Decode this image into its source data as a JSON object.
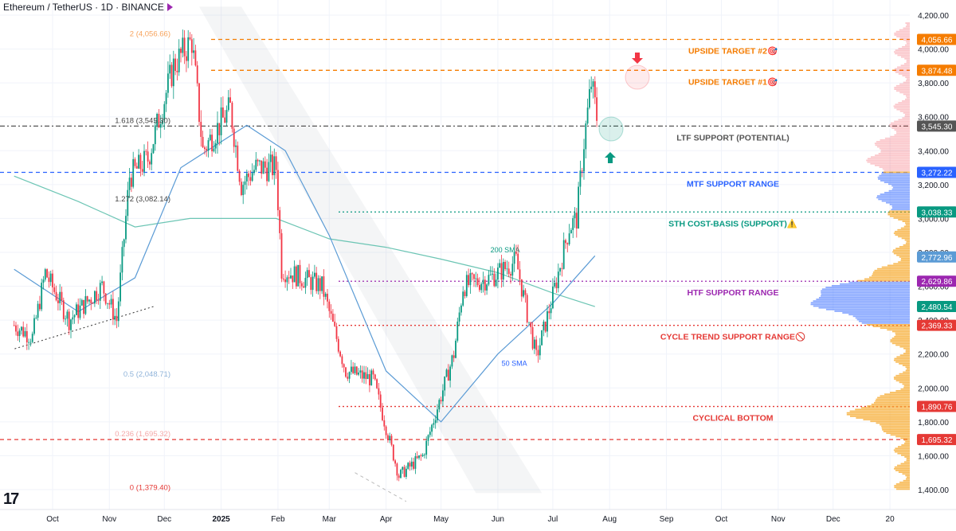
{
  "header": {
    "title": "Ethereum / TetherUS · 1D · BINANCE",
    "logo_text": "17"
  },
  "chart_data": {
    "type": "candlestick",
    "title": "Ethereum / TetherUS · 1D · BINANCE",
    "ylim": [
      1380,
      4250
    ],
    "y_ticks": [
      1400,
      1600,
      1800,
      2000,
      2200,
      2400,
      2600,
      2800,
      3000,
      3200,
      3400,
      3600,
      3800,
      4000,
      4200
    ],
    "y_tick_labels": [
      "1,400.00",
      "1,600.00",
      "1,800.00",
      "2,000.00",
      "2,200.00",
      "2,400.00",
      "2,600.00",
      "2,800.00",
      "3,000.00",
      "3,200.00",
      "3,400.00",
      "3,600.00",
      "3,800.00",
      "4,000.00",
      "4,200.00"
    ],
    "x_ticks": [
      {
        "label": "Oct",
        "date": "2024-10-01"
      },
      {
        "label": "Nov",
        "date": "2024-11-01"
      },
      {
        "label": "Dec",
        "date": "2024-12-01"
      },
      {
        "label": "2025",
        "date": "2025-01-01",
        "bold": true
      },
      {
        "label": "Feb",
        "date": "2025-02-01"
      },
      {
        "label": "Mar",
        "date": "2025-03-01"
      },
      {
        "label": "Apr",
        "date": "2025-04-01"
      },
      {
        "label": "May",
        "date": "2025-05-01"
      },
      {
        "label": "Jun",
        "date": "2025-06-01"
      },
      {
        "label": "Jul",
        "date": "2025-07-01"
      },
      {
        "label": "Aug",
        "date": "2025-08-01"
      },
      {
        "label": "Sep",
        "date": "2025-09-01"
      },
      {
        "label": "Oct",
        "date": "2025-10-01"
      },
      {
        "label": "Nov",
        "date": "2025-11-01"
      },
      {
        "label": "Dec",
        "date": "2025-12-01"
      },
      {
        "label": "20",
        "date": "2026-01-01"
      }
    ],
    "price_path": [
      [
        "2024-09-10",
        2370
      ],
      [
        "2024-09-20",
        2300
      ],
      [
        "2024-09-27",
        2680
      ],
      [
        "2024-10-10",
        2400
      ],
      [
        "2024-10-28",
        2600
      ],
      [
        "2024-11-05",
        2400
      ],
      [
        "2024-11-12",
        3250
      ],
      [
        "2024-11-22",
        3350
      ],
      [
        "2024-12-06",
        3900
      ],
      [
        "2024-12-16",
        4050
      ],
      [
        "2024-12-22",
        3400
      ],
      [
        "2025-01-06",
        3650
      ],
      [
        "2025-01-12",
        3200
      ],
      [
        "2025-01-20",
        3300
      ],
      [
        "2025-01-31",
        3300
      ],
      [
        "2025-02-03",
        2700
      ],
      [
        "2025-02-25",
        2600
      ],
      [
        "2025-03-10",
        2100
      ],
      [
        "2025-03-25",
        2050
      ],
      [
        "2025-04-08",
        1480
      ],
      [
        "2025-04-21",
        1600
      ],
      [
        "2025-05-08",
        2200
      ],
      [
        "2025-05-13",
        2600
      ],
      [
        "2025-05-28",
        2650
      ],
      [
        "2025-06-11",
        2750
      ],
      [
        "2025-06-22",
        2180
      ],
      [
        "2025-06-30",
        2500
      ],
      [
        "2025-07-10",
        2950
      ],
      [
        "2025-07-14",
        3000
      ],
      [
        "2025-07-18",
        3450
      ],
      [
        "2025-07-22",
        3800
      ],
      [
        "2025-07-25",
        3600
      ]
    ],
    "sma_50": [
      [
        "2024-09-10",
        2700
      ],
      [
        "2024-10-15",
        2450
      ],
      [
        "2024-11-15",
        2650
      ],
      [
        "2024-12-10",
        3300
      ],
      [
        "2025-01-15",
        3550
      ],
      [
        "2025-02-05",
        3400
      ],
      [
        "2025-03-01",
        2900
      ],
      [
        "2025-04-01",
        2100
      ],
      [
        "2025-05-01",
        1800
      ],
      [
        "2025-06-01",
        2200
      ],
      [
        "2025-07-01",
        2500
      ],
      [
        "2025-07-24",
        2780
      ]
    ],
    "sma_200": [
      [
        "2024-09-10",
        3250
      ],
      [
        "2024-10-15",
        3100
      ],
      [
        "2024-11-15",
        2950
      ],
      [
        "2024-12-15",
        3000
      ],
      [
        "2025-01-31",
        3000
      ],
      [
        "2025-03-01",
        2880
      ],
      [
        "2025-04-01",
        2830
      ],
      [
        "2025-05-01",
        2760
      ],
      [
        "2025-06-01",
        2680
      ],
      [
        "2025-07-01",
        2560
      ],
      [
        "2025-07-24",
        2480
      ]
    ],
    "fib_labels": [
      {
        "label": "2 (4,056.66)",
        "value": 4056.66,
        "color": "#f7a35c"
      },
      {
        "label": "1.618 (3,545.30)",
        "value": 3545.3,
        "color": "#444444"
      },
      {
        "label": "1.272 (3,082.14)",
        "value": 3082.14,
        "color": "#444444"
      },
      {
        "label": "0.5 (2,048.71)",
        "value": 2048.71,
        "color": "#8fb3d9"
      },
      {
        "label": "0.236 (1,695.32)",
        "value": 1695.32,
        "color": "#f4a8a8"
      },
      {
        "label": "0 (1,379.40)",
        "value": 1379.4,
        "color": "#e53935"
      }
    ],
    "levels": [
      {
        "value": 4056.66,
        "label": "4,056.66",
        "color": "#f57c00",
        "style": "dashed",
        "annotation": "UPSIDE TARGET #2🎯"
      },
      {
        "value": 3874.48,
        "label": "3,874.48",
        "color": "#f57c00",
        "style": "dashed",
        "annotation": "UPSIDE TARGET #1🎯"
      },
      {
        "value": 3545.3,
        "label": "3,545.30",
        "color": "#555555",
        "style": "dashdot",
        "annotation": "LTF SUPPORT (POTENTIAL)"
      },
      {
        "value": 3272.22,
        "label": "3,272.22",
        "color": "#2962ff",
        "style": "dashed",
        "annotation": "MTF SUPPORT RANGE"
      },
      {
        "value": 3038.33,
        "label": "3,038.33",
        "color": "#089981",
        "style": "dotted",
        "annotation": "STH COST-BASIS (SUPPORT)⚠️"
      },
      {
        "value": 2772.96,
        "label": "2,772.96",
        "color": "#5b9bd5",
        "style": "none",
        "annotation": ""
      },
      {
        "value": 2629.86,
        "label": "2,629.86",
        "color": "#9c27b0",
        "style": "dotted",
        "annotation": "HTF SUPPORT RANGE"
      },
      {
        "value": 2480.54,
        "label": "2,480.54",
        "color": "#089981",
        "style": "none",
        "annotation": ""
      },
      {
        "value": 2369.33,
        "label": "2,369.33",
        "color": "#e53935",
        "style": "dotted",
        "annotation": "CYCLE TREND SUPPORT RANGE🚫"
      },
      {
        "value": 1890.76,
        "label": "1,890.76",
        "color": "#e53935",
        "style": "dotted",
        "annotation": "CYCLICAL BOTTOM"
      },
      {
        "value": 1695.32,
        "label": "1,695.32",
        "color": "#e53935",
        "style": "dashed",
        "annotation": ""
      }
    ],
    "annotations": {
      "sma_200_label": "200 SMA",
      "sma_50_label": "50 SMA"
    },
    "colors": {
      "up": "#089981",
      "down": "#f23645",
      "sma_50": "#5b9bd5",
      "sma_200": "#6cc5b4"
    }
  }
}
